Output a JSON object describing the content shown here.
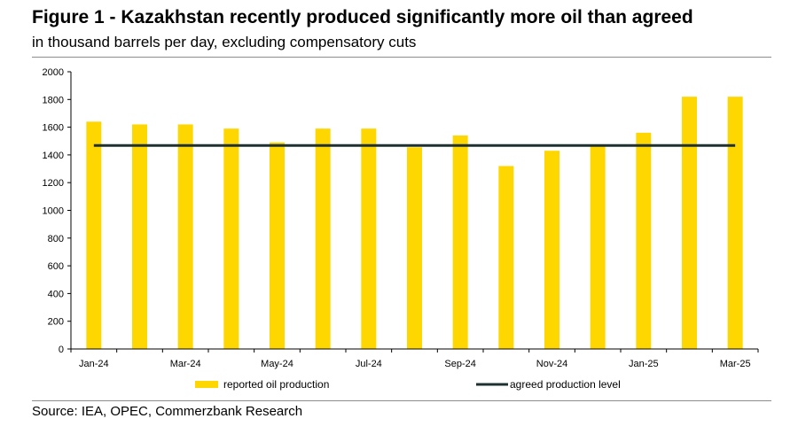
{
  "title": "Figure 1 - Kazakhstan recently produced significantly more oil than agreed",
  "subtitle": "in thousand barrels per day, excluding compensatory cuts",
  "source": "Source: IEA, OPEC, Commerzbank Research",
  "chart_data": {
    "type": "bar",
    "categories": [
      "Jan-24",
      "Feb-24",
      "Mar-24",
      "Apr-24",
      "May-24",
      "Jun-24",
      "Jul-24",
      "Aug-24",
      "Sep-24",
      "Oct-24",
      "Nov-24",
      "Dec-24",
      "Jan-25",
      "Feb-25",
      "Mar-25"
    ],
    "x_tick_labels": [
      "Jan-24",
      "",
      "Mar-24",
      "",
      "May-24",
      "",
      "Jul-24",
      "",
      "Sep-24",
      "",
      "Nov-24",
      "",
      "Jan-25",
      "",
      "Mar-25"
    ],
    "series": [
      {
        "name": "reported oil production",
        "kind": "bar",
        "color": "#FFD700",
        "values": [
          1640,
          1620,
          1620,
          1590,
          1490,
          1590,
          1590,
          1455,
          1540,
          1320,
          1430,
          1465,
          1560,
          1820,
          1820
        ]
      },
      {
        "name": "agreed production level",
        "kind": "line",
        "color": "#1f3030",
        "values": [
          1468,
          1468,
          1468,
          1468,
          1468,
          1468,
          1468,
          1468,
          1468,
          1468,
          1468,
          1468,
          1468,
          1468,
          1468
        ]
      }
    ],
    "ylim": [
      0,
      2000
    ],
    "yticks": [
      0,
      200,
      400,
      600,
      800,
      1000,
      1200,
      1400,
      1600,
      1800,
      2000
    ],
    "grid": false,
    "legend_position": "bottom"
  }
}
